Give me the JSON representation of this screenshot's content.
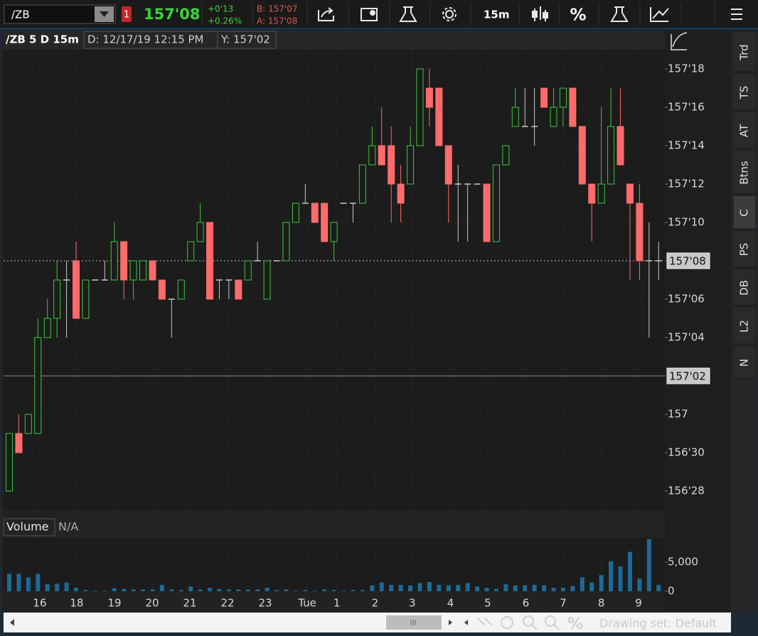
{
  "toolbar": {
    "symbol": "/ZB",
    "alert_count": "1",
    "last": "157'08",
    "change": "+0'13",
    "change_pct": "+0.26%",
    "bid": "B: 157'07",
    "ask": "A: 157'08",
    "timeframe": "15m",
    "percent": "%"
  },
  "header": {
    "title": "/ZB 5 D 15m",
    "date": "D: 12/17/19 12:15 PM",
    "y": "Y: 157'02"
  },
  "chart_data": {
    "type": "candlestick",
    "up_color": "#3cc83c",
    "down_color": "#ff6b6b",
    "doji_color": "#c8c8c8",
    "grid": true,
    "ylim": [
      156.84375,
      157.59375
    ],
    "yticks": [
      {
        "value": 157.5625,
        "label": "157'18"
      },
      {
        "value": 157.5,
        "label": "157'16"
      },
      {
        "value": 157.4375,
        "label": "157'14"
      },
      {
        "value": 157.375,
        "label": "157'12"
      },
      {
        "value": 157.3125,
        "label": "157'10"
      },
      {
        "value": 157.25,
        "label": "157'08"
      },
      {
        "value": 157.1875,
        "label": "157'06"
      },
      {
        "value": 157.125,
        "label": "157'04"
      },
      157,
      {
        "value": 156.9375,
        "label": "156'30"
      },
      {
        "value": 156.875,
        "label": "156'28"
      }
    ],
    "xticks": [
      {
        "value": 3.2,
        "label": "16"
      },
      {
        "value": 7.07,
        "label": "18"
      },
      {
        "value": 11.02,
        "label": "19"
      },
      {
        "value": 14.97,
        "label": "20"
      },
      {
        "value": 18.91,
        "label": "21"
      },
      {
        "value": 22.86,
        "label": "22"
      },
      {
        "value": 26.81,
        "label": "23"
      },
      {
        "value": 31.2,
        "label": "Tue"
      },
      {
        "value": 34.3,
        "label": "1"
      },
      {
        "value": 38.3,
        "label": "2"
      },
      {
        "value": 42.2,
        "label": "3"
      },
      {
        "value": 46.2,
        "label": "4"
      },
      {
        "value": 50.1,
        "label": "5"
      },
      {
        "value": 54.1,
        "label": "6"
      },
      {
        "value": 58.0,
        "label": "7"
      },
      {
        "value": 62.0,
        "label": "8"
      },
      {
        "value": 65.9,
        "label": "9"
      }
    ],
    "price_marker": {
      "value": 157.25,
      "label": "157'08"
    },
    "crosshair": {
      "value": 157.0625,
      "label": "157'02"
    },
    "candles": [
      [
        156.875,
        156.96875,
        156.875,
        156.96875
      ],
      [
        156.96875,
        157,
        156.9375,
        156.9375
      ],
      [
        156.96875,
        157,
        156.96875,
        157
      ],
      [
        156.96875,
        157.15625,
        156.96875,
        157.125
      ],
      [
        157.125,
        157.1875,
        157.125,
        157.15625
      ],
      [
        157.15625,
        157.25,
        157.125,
        157.21875
      ],
      [
        157.21875,
        157.25,
        157.125,
        157.21875
      ],
      [
        157.25,
        157.28125,
        157.15625,
        157.15625
      ],
      [
        157.15625,
        157.21875,
        157.15625,
        157.21875
      ],
      [
        157.21875,
        157.21875,
        157.21875,
        157.21875
      ],
      [
        157.21875,
        157.25,
        157.21875,
        157.21875
      ],
      [
        157.21875,
        157.3125,
        157.21875,
        157.28125
      ],
      [
        157.28125,
        157.28125,
        157.1875,
        157.21875
      ],
      [
        157.21875,
        157.25,
        157.1875,
        157.25
      ],
      [
        157.21875,
        157.25,
        157.21875,
        157.25
      ],
      [
        157.25,
        157.25,
        157.21875,
        157.21875
      ],
      [
        157.21875,
        157.21875,
        157.1875,
        157.1875
      ],
      [
        157.1875,
        157.1875,
        157.125,
        157.1875
      ],
      [
        157.1875,
        157.21875,
        157.1875,
        157.21875
      ],
      [
        157.25,
        157.28125,
        157.25,
        157.28125
      ],
      [
        157.28125,
        157.34375,
        157.28125,
        157.3125
      ],
      [
        157.3125,
        157.3125,
        157.1875,
        157.1875
      ],
      [
        157.21875,
        157.21875,
        157.1875,
        157.21875
      ],
      [
        157.21875,
        157.21875,
        157.1875,
        157.21875
      ],
      [
        157.21875,
        157.21875,
        157.1875,
        157.1875
      ],
      [
        157.21875,
        157.25,
        157.21875,
        157.25
      ],
      [
        157.25,
        157.28125,
        157.25,
        157.25
      ],
      [
        157.1875,
        157.25,
        157.1875,
        157.25
      ],
      [
        157.25,
        157.25,
        157.25,
        157.25
      ],
      [
        157.25,
        157.3125,
        157.25,
        157.3125
      ],
      [
        157.3125,
        157.34375,
        157.3125,
        157.34375
      ],
      [
        157.34375,
        157.375,
        157.34375,
        157.34375
      ],
      [
        157.34375,
        157.34375,
        157.3125,
        157.3125
      ],
      [
        157.34375,
        157.34375,
        157.28125,
        157.28125
      ],
      [
        157.28125,
        157.3125,
        157.25,
        157.3125
      ],
      [
        157.34375,
        157.34375,
        157.34375,
        157.34375
      ],
      [
        157.34375,
        157.34375,
        157.3125,
        157.34375
      ],
      [
        157.34375,
        157.40625,
        157.34375,
        157.40625
      ],
      [
        157.40625,
        157.46875,
        157.40625,
        157.4375
      ],
      [
        157.4375,
        157.5,
        157.40625,
        157.40625
      ],
      [
        157.4375,
        157.46875,
        157.3125,
        157.375
      ],
      [
        157.375,
        157.40625,
        157.3125,
        157.34375
      ],
      [
        157.375,
        157.46875,
        157.375,
        157.4375
      ],
      [
        157.4375,
        157.5625,
        157.4375,
        157.5625
      ],
      [
        157.53125,
        157.5625,
        157.46875,
        157.5
      ],
      [
        157.53125,
        157.53125,
        157.4375,
        157.4375
      ],
      [
        157.4375,
        157.4375,
        157.3125,
        157.375
      ],
      [
        157.375,
        157.40625,
        157.28125,
        157.375
      ],
      [
        157.375,
        157.375,
        157.28125,
        157.375
      ],
      [
        157.375,
        157.375,
        157.375,
        157.375
      ],
      [
        157.375,
        157.375,
        157.28125,
        157.28125
      ],
      [
        157.28125,
        157.40625,
        157.28125,
        157.40625
      ],
      [
        157.40625,
        157.4375,
        157.40625,
        157.4375
      ],
      [
        157.46875,
        157.53125,
        157.46875,
        157.5
      ],
      [
        157.46875,
        157.53125,
        157.46875,
        157.46875
      ],
      [
        157.46875,
        157.53125,
        157.4375,
        157.46875
      ],
      [
        157.53125,
        157.53125,
        157.5,
        157.5
      ],
      [
        157.46875,
        157.53125,
        157.46875,
        157.5
      ],
      [
        157.5,
        157.53125,
        157.46875,
        157.53125
      ],
      [
        157.53125,
        157.53125,
        157.46875,
        157.46875
      ],
      [
        157.46875,
        157.46875,
        157.375,
        157.375
      ],
      [
        157.375,
        157.375,
        157.28125,
        157.34375
      ],
      [
        157.34375,
        157.5,
        157.34375,
        157.375
      ],
      [
        157.375,
        157.53125,
        157.375,
        157.46875
      ],
      [
        157.46875,
        157.53125,
        157.40625,
        157.40625
      ],
      [
        157.375,
        157.375,
        157.21875,
        157.34375
      ],
      [
        157.34375,
        157.375,
        157.21875,
        157.25
      ],
      [
        157.25,
        157.3125,
        157.125,
        157.25
      ],
      [
        157.25,
        157.28125,
        157.21875,
        157.25
      ]
    ]
  },
  "volume": {
    "type": "bar",
    "title": "Volume",
    "value": "N/A",
    "color": "#1c6a97",
    "ylim": [
      0,
      9200
    ],
    "yticks": [
      0,
      {
        "value": 5000,
        "label": "5,000"
      }
    ],
    "values": [
      3000,
      3000,
      2400,
      3000,
      1200,
      1300,
      1500,
      600,
      200,
      100,
      100,
      500,
      400,
      300,
      300,
      300,
      1100,
      300,
      200,
      800,
      300,
      600,
      400,
      300,
      300,
      300,
      300,
      600,
      200,
      300,
      100,
      200,
      100,
      300,
      200,
      100,
      200,
      200,
      1000,
      1500,
      1100,
      1100,
      1000,
      1400,
      1600,
      1100,
      1000,
      1100,
      1400,
      800,
      600,
      400,
      1200,
      1000,
      1000,
      1100,
      1000,
      600,
      600,
      900,
      2400,
      1500,
      2800,
      5200,
      4300,
      6800,
      2200,
      9000,
      1100
    ]
  },
  "sidebar": {
    "tabs": [
      "Trd",
      "TS",
      "AT",
      "Btns",
      "C",
      "PS",
      "DB",
      "L2",
      "N"
    ],
    "active": 4
  },
  "footer": {
    "drawing_set": "Drawing set: Default"
  }
}
